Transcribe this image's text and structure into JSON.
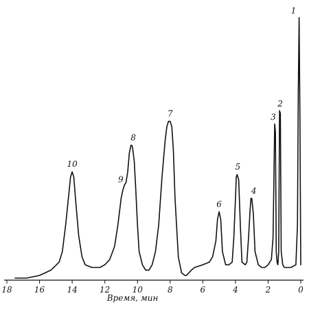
{
  "chart_data": {
    "type": "line",
    "title": "",
    "xlabel": "Время, мин",
    "ylabel": "",
    "x_reversed": true,
    "xlim": [
      18,
      0
    ],
    "ylim": [
      0,
      1.0
    ],
    "grid": false,
    "x_ticks": [
      18,
      16,
      14,
      12,
      10,
      8,
      6,
      4,
      2,
      0
    ],
    "x_tick_labels": [
      "18",
      "16",
      "14",
      "12",
      "10",
      "8",
      "6",
      "4",
      "2",
      "0"
    ],
    "peaks": [
      {
        "label": "1",
        "time": 0.1,
        "height": 0.98
      },
      {
        "label": "2",
        "time": 1.3,
        "height": 0.63
      },
      {
        "label": "3",
        "time": 1.6,
        "height": 0.58
      },
      {
        "label": "4",
        "time": 3.0,
        "height": 0.3
      },
      {
        "label": "5",
        "time": 3.9,
        "height": 0.39
      },
      {
        "label": "6",
        "time": 5.0,
        "height": 0.25
      },
      {
        "label": "7",
        "time": 8.0,
        "height": 0.59
      },
      {
        "label": "8",
        "time": 10.3,
        "height": 0.5
      },
      {
        "label": "9",
        "time": 10.9,
        "height": 0.35
      },
      {
        "label": "10",
        "time": 14.0,
        "height": 0.4
      }
    ],
    "trace": {
      "x": [
        17.5,
        16.8,
        16.0,
        15.3,
        14.8,
        14.6,
        14.4,
        14.2,
        14.1,
        14.0,
        13.9,
        13.8,
        13.6,
        13.4,
        13.2,
        12.8,
        12.3,
        12.0,
        11.7,
        11.4,
        11.2,
        11.0,
        10.9,
        10.8,
        10.7,
        10.6,
        10.5,
        10.4,
        10.35,
        10.3,
        10.2,
        10.1,
        10.0,
        9.9,
        9.7,
        9.5,
        9.3,
        9.1,
        8.9,
        8.7,
        8.5,
        8.3,
        8.2,
        8.1,
        8.0,
        7.9,
        7.8,
        7.7,
        7.5,
        7.3,
        7.1,
        7.0,
        6.7,
        6.5,
        6.0,
        5.6,
        5.4,
        5.2,
        5.1,
        5.0,
        4.9,
        4.8,
        4.6,
        4.4,
        4.2,
        4.1,
        4.0,
        3.95,
        3.9,
        3.8,
        3.7,
        3.6,
        3.4,
        3.3,
        3.2,
        3.1,
        3.05,
        3.0,
        2.9,
        2.8,
        2.6,
        2.4,
        2.2,
        2.0,
        1.8,
        1.7,
        1.65,
        1.6,
        1.55,
        1.5,
        1.45,
        1.4,
        1.35,
        1.3,
        1.25,
        1.2,
        1.1,
        1.0,
        0.6,
        0.3,
        0.2,
        0.15,
        0.1,
        0.05,
        0.0
      ],
      "y": [
        0.0,
        0.0,
        0.01,
        0.03,
        0.06,
        0.1,
        0.2,
        0.32,
        0.38,
        0.4,
        0.38,
        0.3,
        0.16,
        0.08,
        0.05,
        0.04,
        0.04,
        0.05,
        0.07,
        0.12,
        0.2,
        0.3,
        0.33,
        0.35,
        0.36,
        0.4,
        0.47,
        0.5,
        0.5,
        0.49,
        0.44,
        0.33,
        0.2,
        0.1,
        0.05,
        0.03,
        0.03,
        0.05,
        0.1,
        0.2,
        0.38,
        0.52,
        0.57,
        0.59,
        0.59,
        0.57,
        0.48,
        0.3,
        0.08,
        0.02,
        0.01,
        0.01,
        0.03,
        0.04,
        0.05,
        0.06,
        0.08,
        0.14,
        0.22,
        0.25,
        0.22,
        0.1,
        0.05,
        0.05,
        0.06,
        0.15,
        0.3,
        0.38,
        0.39,
        0.37,
        0.2,
        0.06,
        0.05,
        0.06,
        0.15,
        0.26,
        0.3,
        0.3,
        0.24,
        0.1,
        0.05,
        0.04,
        0.04,
        0.05,
        0.07,
        0.15,
        0.35,
        0.58,
        0.55,
        0.1,
        0.06,
        0.05,
        0.1,
        0.63,
        0.62,
        0.1,
        0.05,
        0.04,
        0.04,
        0.05,
        0.2,
        0.7,
        0.98,
        0.6,
        0.05
      ]
    }
  }
}
